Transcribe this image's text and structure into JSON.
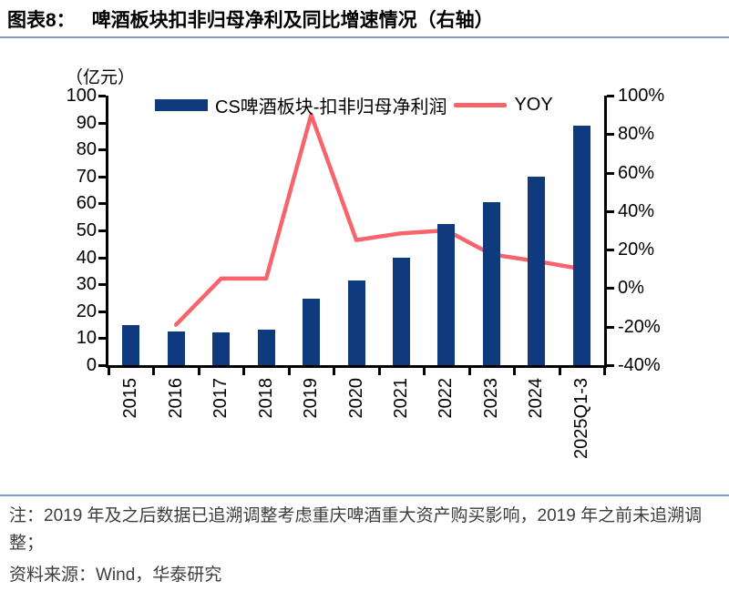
{
  "figure": {
    "label": "图表8：",
    "title": "啤酒板块扣非归母净利及同比增速情况（右轴）"
  },
  "theme": {
    "bar_color": "#0F3A7D",
    "line_color": "#F7646C",
    "rule_color": "#7D9CC6",
    "axis_color": "#000000"
  },
  "chart_data": {
    "type": "bar+line",
    "unit_label": "（亿元）",
    "categories": [
      "2015",
      "2016",
      "2017",
      "2018",
      "2019",
      "2020",
      "2021",
      "2022",
      "2023",
      "2024",
      "2025Q1-3"
    ],
    "series": [
      {
        "name": "CS啤酒板块-扣非归母净利润",
        "type": "bar",
        "axis": "left",
        "values": [
          14.7,
          12.4,
          12.3,
          13.1,
          24.7,
          31.4,
          40.0,
          52.2,
          60.5,
          70.0,
          89.0
        ]
      },
      {
        "name": "YOY",
        "type": "line",
        "axis": "right",
        "values": [
          null,
          -19,
          5,
          5,
          90,
          25,
          28.5,
          30,
          17.5,
          14,
          10
        ]
      }
    ],
    "left_axis": {
      "min": 0,
      "max": 100,
      "tick_values": [
        0,
        10,
        20,
        30,
        40,
        50,
        60,
        70,
        80,
        90,
        100
      ],
      "tick_labels": [
        "0",
        "10",
        "20",
        "30",
        "40",
        "50",
        "60",
        "70",
        "80",
        "90",
        "100"
      ]
    },
    "right_axis": {
      "min": -40,
      "max": 100,
      "tick_values": [
        -40,
        -20,
        0,
        20,
        40,
        60,
        80,
        100
      ],
      "tick_labels": [
        "-40%",
        "-20%",
        "0%",
        "20%",
        "40%",
        "60%",
        "80%",
        "100%"
      ]
    },
    "legend_position": "top",
    "grid": "off"
  },
  "footer": {
    "note": "注：2019 年及之后数据已追溯调整考虑重庆啤酒重大资产购买影响，2019 年之前未追溯调整；",
    "source": "资料来源：Wind，华泰研究"
  }
}
